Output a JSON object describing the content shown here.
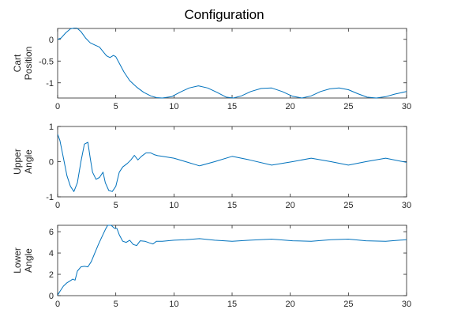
{
  "chart_data": [
    {
      "type": "line",
      "title": "Configuration",
      "ylabel_lines": [
        "Cart",
        "Position"
      ],
      "xlabel": "",
      "xlim": [
        0,
        30
      ],
      "ylim": [
        -1.35,
        0.25
      ],
      "xticks": [
        0,
        5,
        10,
        15,
        20,
        25,
        30
      ],
      "xtick_labels": [
        "0",
        "5",
        "10",
        "15",
        "20",
        "25",
        "30"
      ],
      "yticks": [
        0,
        -0.5,
        -1
      ],
      "ytick_labels": [
        "0",
        "-0.5",
        "-1"
      ],
      "grid": false,
      "color": "#0072bd",
      "x": [
        0,
        0.3,
        0.7,
        1.1,
        1.6,
        2.0,
        2.4,
        2.8,
        3.2,
        3.6,
        3.9,
        4.2,
        4.5,
        4.8,
        5.0,
        5.3,
        5.7,
        6.2,
        6.8,
        7.4,
        8.0,
        8.5,
        9.0,
        9.8,
        10.5,
        11.3,
        12.1,
        12.9,
        13.7,
        14.5,
        15.1,
        15.8,
        16.6,
        17.5,
        18.4,
        19.3,
        20.2,
        21.0,
        21.8,
        22.6,
        23.4,
        24.2,
        25.0,
        25.8,
        26.6,
        27.4,
        28.2,
        29.0,
        30.0
      ],
      "y": [
        0,
        0.03,
        0.15,
        0.24,
        0.27,
        0.18,
        0.03,
        -0.08,
        -0.13,
        -0.18,
        -0.28,
        -0.38,
        -0.42,
        -0.37,
        -0.4,
        -0.55,
        -0.75,
        -0.95,
        -1.1,
        -1.22,
        -1.3,
        -1.34,
        -1.35,
        -1.32,
        -1.22,
        -1.12,
        -1.07,
        -1.12,
        -1.22,
        -1.33,
        -1.35,
        -1.3,
        -1.2,
        -1.13,
        -1.12,
        -1.2,
        -1.31,
        -1.35,
        -1.3,
        -1.2,
        -1.14,
        -1.12,
        -1.16,
        -1.25,
        -1.33,
        -1.35,
        -1.32,
        -1.26,
        -1.2
      ]
    },
    {
      "type": "line",
      "title": "",
      "ylabel_lines": [
        "Upper",
        "Angle"
      ],
      "xlabel": "",
      "xlim": [
        0,
        30
      ],
      "ylim": [
        -1,
        1
      ],
      "xticks": [
        0,
        5,
        10,
        15,
        20,
        25,
        30
      ],
      "xtick_labels": [
        "0",
        "5",
        "10",
        "15",
        "20",
        "25",
        "30"
      ],
      "yticks": [
        1,
        0,
        -1
      ],
      "ytick_labels": [
        "1",
        "0",
        "-1"
      ],
      "grid": false,
      "color": "#0072bd",
      "x": [
        0,
        0.2,
        0.5,
        0.8,
        1.1,
        1.4,
        1.7,
        2.0,
        2.3,
        2.6,
        2.8,
        3.0,
        3.3,
        3.6,
        3.9,
        4.1,
        4.4,
        4.7,
        5.0,
        5.3,
        5.6,
        6.0,
        6.3,
        6.6,
        6.9,
        7.2,
        7.6,
        8.0,
        8.3,
        8.6,
        9.0,
        10.0,
        11.0,
        12.2,
        13.5,
        15.0,
        16.5,
        18.4,
        20.2,
        21.8,
        23.5,
        25.0,
        26.5,
        28.2,
        30.0
      ],
      "y": [
        0.78,
        0.6,
        0.1,
        -0.4,
        -0.7,
        -0.85,
        -0.6,
        0.0,
        0.5,
        0.55,
        0.1,
        -0.3,
        -0.5,
        -0.45,
        -0.3,
        -0.6,
        -0.82,
        -0.85,
        -0.7,
        -0.3,
        -0.15,
        -0.05,
        0.05,
        0.18,
        0.05,
        0.15,
        0.25,
        0.25,
        0.2,
        0.17,
        0.15,
        0.1,
        0.0,
        -0.12,
        0.0,
        0.15,
        0.05,
        -0.1,
        0.0,
        0.1,
        0.0,
        -0.1,
        0.0,
        0.1,
        -0.02
      ]
    },
    {
      "type": "line",
      "title": "",
      "ylabel_lines": [
        "Lower",
        "Angle"
      ],
      "xlabel": "",
      "xlim": [
        0,
        30
      ],
      "ylim": [
        0,
        6.6
      ],
      "xticks": [
        0,
        5,
        10,
        15,
        20,
        25,
        30
      ],
      "xtick_labels": [
        "0",
        "5",
        "10",
        "15",
        "20",
        "25",
        "30"
      ],
      "yticks": [
        0,
        2,
        4,
        6
      ],
      "ytick_labels": [
        "0",
        "2",
        "4",
        "6"
      ],
      "grid": false,
      "color": "#0072bd",
      "x": [
        0,
        0.2,
        0.5,
        0.8,
        1.1,
        1.3,
        1.5,
        1.7,
        2.0,
        2.3,
        2.6,
        2.9,
        3.2,
        3.5,
        3.8,
        4.1,
        4.3,
        4.6,
        4.9,
        5.1,
        5.3,
        5.6,
        5.9,
        6.2,
        6.5,
        6.8,
        7.1,
        7.5,
        7.9,
        8.2,
        8.5,
        9.0,
        10.0,
        11.0,
        12.2,
        13.5,
        15.0,
        16.5,
        18.4,
        20.2,
        21.8,
        23.5,
        25.0,
        26.5,
        28.2,
        30.0
      ],
      "y": [
        0.05,
        0.4,
        0.9,
        1.2,
        1.4,
        1.55,
        1.45,
        2.3,
        2.7,
        2.75,
        2.7,
        3.2,
        4.0,
        4.8,
        5.5,
        6.2,
        6.6,
        6.6,
        6.3,
        6.3,
        5.7,
        5.1,
        5.0,
        5.2,
        4.8,
        4.7,
        5.15,
        5.1,
        4.95,
        4.85,
        5.1,
        5.1,
        5.2,
        5.25,
        5.35,
        5.2,
        5.1,
        5.2,
        5.3,
        5.15,
        5.1,
        5.25,
        5.3,
        5.15,
        5.1,
        5.25
      ]
    }
  ]
}
